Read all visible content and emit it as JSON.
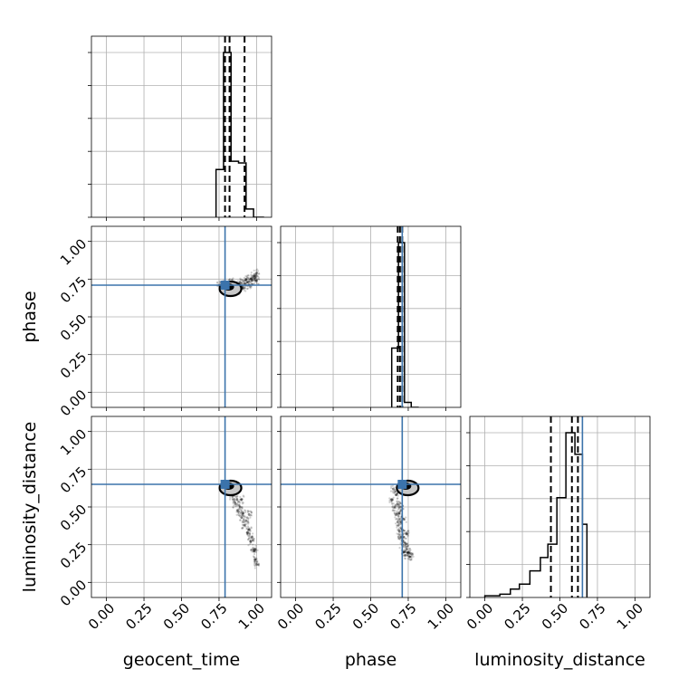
{
  "chart_data": {
    "type": "corner",
    "parameters": [
      "geocent_time",
      "phase",
      "luminosity_distance"
    ],
    "labels": {
      "geocent_time": "geocent_time",
      "phase": "phase",
      "luminosity_distance": "luminosity_distance"
    },
    "axis_range": [
      -0.1,
      1.1
    ],
    "ticks": [
      0.0,
      0.25,
      0.5,
      0.75,
      1.0
    ],
    "tick_labels": [
      "0.00",
      "0.25",
      "0.50",
      "0.75",
      "1.00"
    ],
    "grid": true,
    "truths": {
      "geocent_time": 0.79,
      "phase": 0.71,
      "luminosity_distance": 0.65
    },
    "histograms": {
      "geocent_time": {
        "edges": [
          0.73,
          0.78,
          0.83,
          0.88,
          0.93,
          0.98,
          1.05
        ],
        "counts": [
          0.29,
          1.0,
          0.34,
          0.33,
          0.05,
          0
        ],
        "quantiles": [
          0.79,
          0.82,
          0.92
        ]
      },
      "phase": {
        "edges": [
          0.64,
          0.685,
          0.725,
          0.77,
          0.82
        ],
        "counts": [
          0.36,
          1.0,
          0.03,
          0
        ],
        "quantiles": [
          0.68,
          0.695,
          0.71
        ]
      },
      "luminosity_distance": {
        "edges": [
          0.0,
          0.1,
          0.17,
          0.23,
          0.3,
          0.37,
          0.42,
          0.48,
          0.54,
          0.6,
          0.65,
          0.68
        ],
        "counts": [
          0.01,
          0.02,
          0.05,
          0.08,
          0.16,
          0.24,
          0.32,
          0.6,
          0.99,
          0.86,
          0.44
        ],
        "quantiles": [
          0.44,
          0.58,
          0.62
        ]
      }
    },
    "scatter_panels": [
      {
        "x": "geocent_time",
        "y": "phase",
        "points": [
          [
            0.75,
            0.71
          ],
          [
            0.78,
            0.72
          ],
          [
            0.8,
            0.7
          ],
          [
            0.82,
            0.69
          ],
          [
            0.84,
            0.7
          ],
          [
            0.86,
            0.71
          ],
          [
            0.88,
            0.68
          ],
          [
            0.9,
            0.7
          ],
          [
            0.92,
            0.72
          ],
          [
            0.94,
            0.73
          ],
          [
            0.96,
            0.75
          ],
          [
            0.98,
            0.77
          ],
          [
            1.0,
            0.79
          ],
          [
            0.85,
            0.66
          ],
          [
            0.87,
            0.67
          ],
          [
            0.91,
            0.69
          ],
          [
            0.95,
            0.71
          ],
          [
            0.97,
            0.74
          ],
          [
            0.99,
            0.76
          ],
          [
            0.83,
            0.73
          ],
          [
            0.81,
            0.67
          ],
          [
            0.93,
            0.75
          ],
          [
            1.0,
            0.74
          ],
          [
            0.89,
            0.73
          ]
        ]
      },
      {
        "x": "geocent_time",
        "y": "luminosity_distance",
        "points": [
          [
            0.78,
            0.65
          ],
          [
            0.8,
            0.63
          ],
          [
            0.82,
            0.6
          ],
          [
            0.84,
            0.57
          ],
          [
            0.86,
            0.52
          ],
          [
            0.88,
            0.47
          ],
          [
            0.9,
            0.43
          ],
          [
            0.92,
            0.38
          ],
          [
            0.94,
            0.33
          ],
          [
            0.96,
            0.27
          ],
          [
            0.98,
            0.21
          ],
          [
            0.99,
            0.15
          ],
          [
            1.0,
            0.12
          ],
          [
            0.87,
            0.55
          ],
          [
            0.89,
            0.5
          ],
          [
            0.91,
            0.46
          ],
          [
            0.93,
            0.41
          ],
          [
            0.95,
            0.35
          ],
          [
            0.97,
            0.3
          ],
          [
            0.85,
            0.6
          ],
          [
            0.83,
            0.62
          ],
          [
            0.9,
            0.55
          ],
          [
            0.95,
            0.45
          ],
          [
            0.99,
            0.22
          ]
        ]
      },
      {
        "x": "phase",
        "y": "luminosity_distance",
        "points": [
          [
            0.65,
            0.62
          ],
          [
            0.67,
            0.58
          ],
          [
            0.68,
            0.52
          ],
          [
            0.69,
            0.46
          ],
          [
            0.7,
            0.4
          ],
          [
            0.71,
            0.35
          ],
          [
            0.72,
            0.3
          ],
          [
            0.73,
            0.26
          ],
          [
            0.74,
            0.22
          ],
          [
            0.75,
            0.2
          ],
          [
            0.76,
            0.17
          ],
          [
            0.66,
            0.5
          ],
          [
            0.67,
            0.45
          ],
          [
            0.68,
            0.4
          ],
          [
            0.69,
            0.34
          ],
          [
            0.7,
            0.3
          ],
          [
            0.71,
            0.25
          ],
          [
            0.72,
            0.2
          ],
          [
            0.73,
            0.18
          ],
          [
            0.64,
            0.55
          ],
          [
            0.7,
            0.5
          ],
          [
            0.72,
            0.42
          ],
          [
            0.74,
            0.32
          ],
          [
            0.77,
            0.19
          ]
        ]
      }
    ]
  }
}
